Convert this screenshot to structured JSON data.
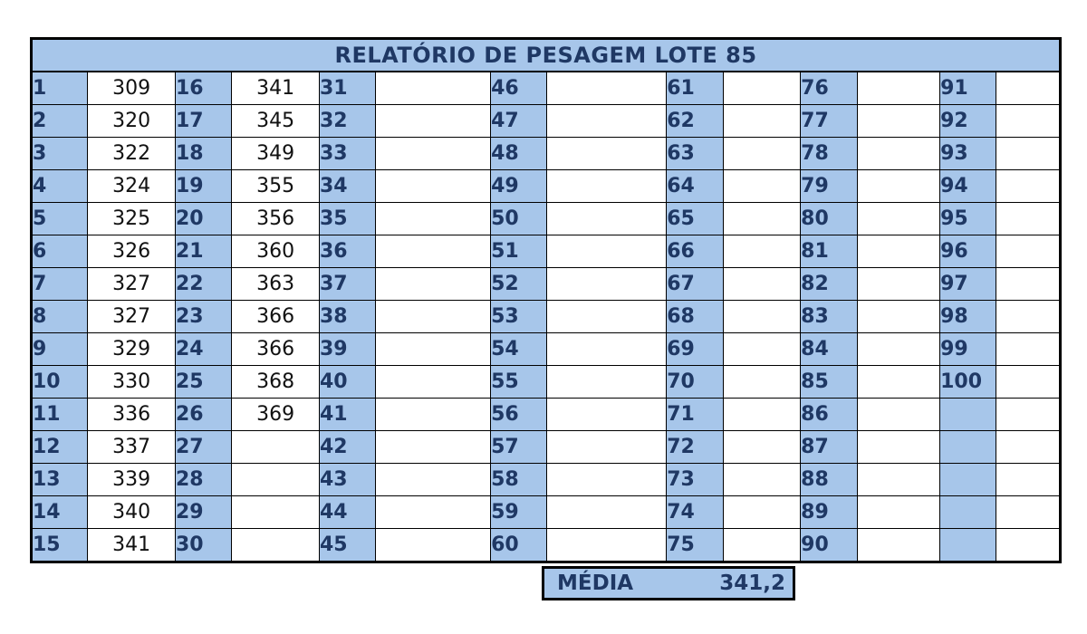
{
  "title": "RELATÓRIO DE PESAGEM LOTE 85",
  "columns": [
    {
      "numbers": [
        "1",
        "2",
        "3",
        "4",
        "5",
        "6",
        "7",
        "8",
        "9",
        "10",
        "11",
        "12",
        "13",
        "14",
        "15"
      ],
      "values": [
        "309",
        "320",
        "322",
        "324",
        "325",
        "326",
        "327",
        "327",
        "329",
        "330",
        "336",
        "337",
        "339",
        "340",
        "341"
      ]
    },
    {
      "numbers": [
        "16",
        "17",
        "18",
        "19",
        "20",
        "21",
        "22",
        "23",
        "24",
        "25",
        "26",
        "27",
        "28",
        "29",
        "30"
      ],
      "values": [
        "341",
        "345",
        "349",
        "355",
        "356",
        "360",
        "363",
        "366",
        "366",
        "368",
        "369",
        "",
        "",
        "",
        ""
      ]
    },
    {
      "numbers": [
        "31",
        "32",
        "33",
        "34",
        "35",
        "36",
        "37",
        "38",
        "39",
        "40",
        "41",
        "42",
        "43",
        "44",
        "45"
      ],
      "values": [
        "",
        "",
        "",
        "",
        "",
        "",
        "",
        "",
        "",
        "",
        "",
        "",
        "",
        "",
        ""
      ]
    },
    {
      "numbers": [
        "46",
        "47",
        "48",
        "49",
        "50",
        "51",
        "52",
        "53",
        "54",
        "55",
        "56",
        "57",
        "58",
        "59",
        "60"
      ],
      "values": [
        "",
        "",
        "",
        "",
        "",
        "",
        "",
        "",
        "",
        "",
        "",
        "",
        "",
        "",
        ""
      ]
    },
    {
      "numbers": [
        "61",
        "62",
        "63",
        "64",
        "65",
        "66",
        "67",
        "68",
        "69",
        "70",
        "71",
        "72",
        "73",
        "74",
        "75"
      ],
      "values": [
        "",
        "",
        "",
        "",
        "",
        "",
        "",
        "",
        "",
        "",
        "",
        "",
        "",
        "",
        ""
      ]
    },
    {
      "numbers": [
        "76",
        "77",
        "78",
        "79",
        "80",
        "81",
        "82",
        "83",
        "84",
        "85",
        "86",
        "87",
        "88",
        "89",
        "90"
      ],
      "values": [
        "",
        "",
        "",
        "",
        "",
        "",
        "",
        "",
        "",
        "",
        "",
        "",
        "",
        "",
        ""
      ]
    },
    {
      "numbers": [
        "91",
        "92",
        "93",
        "94",
        "95",
        "96",
        "97",
        "98",
        "99",
        "100",
        "",
        "",
        "",
        "",
        ""
      ],
      "values": [
        "",
        "",
        "",
        "",
        "",
        "",
        "",
        "",
        "",
        "",
        "",
        "",
        "",
        "",
        ""
      ]
    }
  ],
  "summary": {
    "label": "MÉDIA",
    "value": "341,2"
  }
}
